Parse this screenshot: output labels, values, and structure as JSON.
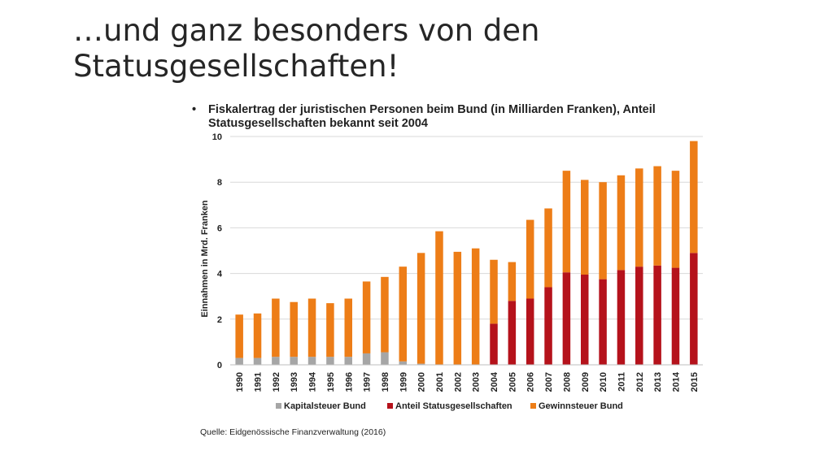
{
  "slide": {
    "title": "…und ganz besonders von den Statusgesellschaften!",
    "bullet_symbol": "•",
    "bullet_text": "Fiskalertrag der juristischen Personen beim Bund (in Milliarden Franken), Anteil Statusgesellschaften bekannt seit 2004",
    "source": "Quelle: Eidgenössische Finanzverwaltung (2016)"
  },
  "chart_data": {
    "type": "bar",
    "stacked": true,
    "title": "",
    "xlabel": "",
    "ylabel": "Einnahmen in Mrd. Franken",
    "ylim": [
      0,
      10
    ],
    "yticks": [
      0,
      2,
      4,
      6,
      8,
      10
    ],
    "grid": true,
    "legend_position": "bottom",
    "categories": [
      "1990",
      "1991",
      "1992",
      "1993",
      "1994",
      "1995",
      "1996",
      "1997",
      "1998",
      "1999",
      "2000",
      "2001",
      "2002",
      "2003",
      "2004",
      "2005",
      "2006",
      "2007",
      "2008",
      "2009",
      "2010",
      "2011",
      "2012",
      "2013",
      "2014",
      "2015"
    ],
    "series": [
      {
        "name": "Kapitalsteuer Bund",
        "color": "#a6a6a6",
        "values": [
          0.3,
          0.3,
          0.35,
          0.35,
          0.35,
          0.35,
          0.35,
          0.5,
          0.55,
          0.15,
          0.05,
          0.0,
          0.0,
          0.0,
          0.0,
          0.0,
          0.0,
          0.0,
          0.0,
          0.0,
          0.0,
          0.0,
          0.0,
          0.0,
          0.0,
          0.0
        ]
      },
      {
        "name": "Anteil Statusgesellschaften",
        "color": "#b5121b",
        "values": [
          0,
          0,
          0,
          0,
          0,
          0,
          0,
          0,
          0,
          0,
          0,
          0,
          0,
          0,
          1.8,
          2.8,
          2.9,
          3.4,
          4.05,
          3.95,
          3.75,
          4.15,
          4.3,
          4.35,
          4.25,
          4.9
        ]
      },
      {
        "name": "Gewinnsteuer Bund",
        "color": "#ed7d17",
        "values": [
          1.9,
          1.95,
          2.55,
          2.4,
          2.55,
          2.35,
          2.55,
          3.15,
          3.3,
          4.15,
          4.85,
          5.85,
          4.95,
          5.1,
          2.8,
          1.7,
          3.45,
          3.45,
          4.45,
          4.15,
          4.25,
          4.15,
          4.3,
          4.35,
          4.25,
          4.9
        ]
      }
    ]
  }
}
